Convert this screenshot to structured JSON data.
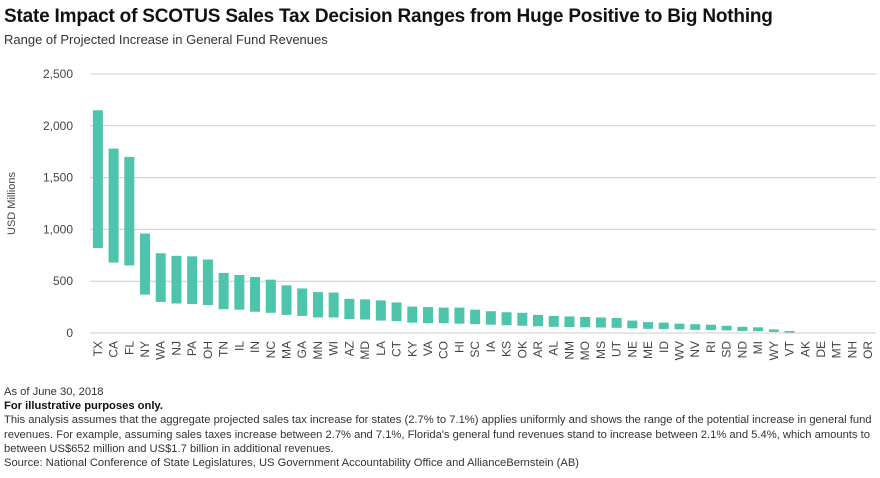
{
  "title": "State Impact of SCOTUS Sales Tax Decision Ranges from Huge Positive to Big Nothing",
  "subtitle": "Range of Projected Increase in General Fund Revenues",
  "notes": {
    "date": "As of June 30, 2018",
    "illustrative": "For illustrative purposes only.",
    "description": "This analysis assumes that the aggregate projected sales tax increase for states (2.7% to 7.1%) applies uniformly and shows the range of the potential increase in general fund revenues. For example, assuming sales taxes increase between 2.7% and 7.1%, Florida's general fund revenues stand to increase between 2.1% and 5.4%, which amounts to between US$652 million and US$1.7 billion in additional revenues.",
    "source": "Source: National Conference of State Legislatures, US Government Accountability Office and AllianceBernstein (AB)"
  },
  "colors": {
    "bar": "#4dc4ac",
    "grid": "#cccccc"
  },
  "chart_data": {
    "type": "bar",
    "subtype": "floating-range",
    "ylabel": "USD Millions",
    "ylim": [
      0,
      2500
    ],
    "yticks": [
      0,
      500,
      1000,
      1500,
      2000,
      2500
    ],
    "ytick_labels": [
      "0",
      "500",
      "1,000",
      "1,500",
      "2,000",
      "2,500"
    ],
    "grid": true,
    "categories": [
      "TX",
      "CA",
      "FL",
      "NY",
      "WA",
      "NJ",
      "PA",
      "OH",
      "TN",
      "IL",
      "IN",
      "NC",
      "MA",
      "GA",
      "MN",
      "WI",
      "AZ",
      "MD",
      "LA",
      "CT",
      "KY",
      "VA",
      "CO",
      "HI",
      "SC",
      "IA",
      "KS",
      "OK",
      "AR",
      "AL",
      "NM",
      "MO",
      "MS",
      "UT",
      "NE",
      "ME",
      "ID",
      "WV",
      "NV",
      "RI",
      "SD",
      "ND",
      "MI",
      "WY",
      "VT",
      "AK",
      "DE",
      "MT",
      "NH",
      "OR"
    ],
    "low": [
      820,
      680,
      652,
      370,
      300,
      285,
      280,
      270,
      230,
      225,
      205,
      195,
      175,
      165,
      150,
      150,
      135,
      130,
      120,
      115,
      100,
      95,
      95,
      90,
      85,
      80,
      75,
      70,
      65,
      60,
      58,
      55,
      53,
      50,
      45,
      40,
      38,
      35,
      30,
      28,
      25,
      20,
      18,
      10,
      5,
      0,
      0,
      0,
      0,
      0
    ],
    "high": [
      2150,
      1780,
      1700,
      960,
      770,
      745,
      740,
      710,
      580,
      560,
      540,
      515,
      460,
      430,
      395,
      390,
      330,
      325,
      315,
      295,
      255,
      250,
      245,
      245,
      225,
      210,
      200,
      195,
      175,
      165,
      160,
      155,
      150,
      145,
      120,
      105,
      100,
      90,
      85,
      80,
      70,
      60,
      55,
      35,
      20,
      0,
      0,
      0,
      0,
      0
    ]
  }
}
